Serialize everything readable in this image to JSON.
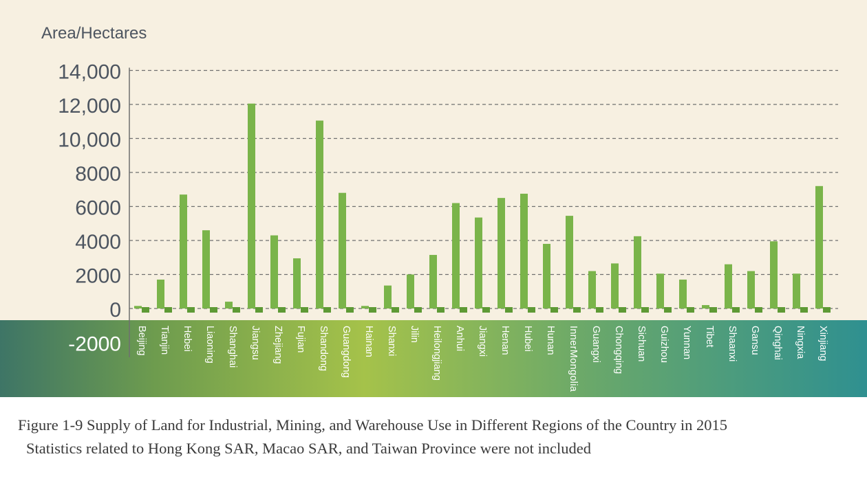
{
  "chart_data": {
    "type": "bar",
    "ylabel": "Area/Hectares",
    "ylim": [
      -2000,
      14000
    ],
    "yticks": [
      -2000,
      0,
      2000,
      4000,
      6000,
      8000,
      10000,
      12000,
      14000
    ],
    "ytick_labels": [
      "-2000",
      "0",
      "2000",
      "4000",
      "6000",
      "8000",
      "10,000",
      "12,000",
      "14,000"
    ],
    "grid": true,
    "categories": [
      "Beijing",
      "Tianjin",
      "Hebei",
      "Liaoning",
      "Shanghai",
      "Jiangsu",
      "Zhejiang",
      "Fujian",
      "Shandong",
      "Guangdong",
      "Hainan",
      "Shanxi",
      "Jilin",
      "Heilongjiang",
      "Anhui",
      "Jiangxi",
      "Henan",
      "Hubei",
      "Hunan",
      "InnerMongolia",
      "Guangxi",
      "Chongqing",
      "Sichuan",
      "Guizhou",
      "Yunnan",
      "Tibet",
      "Shaanxi",
      "Gansu",
      "Qinghai",
      "Ningxia",
      "Xinjiang"
    ],
    "values": [
      150,
      1700,
      6700,
      4600,
      400,
      12050,
      4300,
      2950,
      11050,
      6800,
      150,
      1350,
      2000,
      3150,
      6200,
      5350,
      6500,
      6750,
      3800,
      5450,
      2200,
      2650,
      4250,
      2050,
      1700,
      200,
      2600,
      2200,
      3950,
      2050,
      7200
    ],
    "colors": {
      "bar": "#7ab44a",
      "bar_dark": "#5e9a35",
      "background": "#f7f0e1",
      "axis_text": "#4d5560"
    }
  },
  "caption": {
    "line1": "Figure 1-9 Supply of Land for Industrial, Mining, and Warehouse Use in Different Regions of the Country in 2015",
    "line2": "Statistics related to Hong Kong SAR, Macao SAR, and Taiwan Province were not included"
  }
}
